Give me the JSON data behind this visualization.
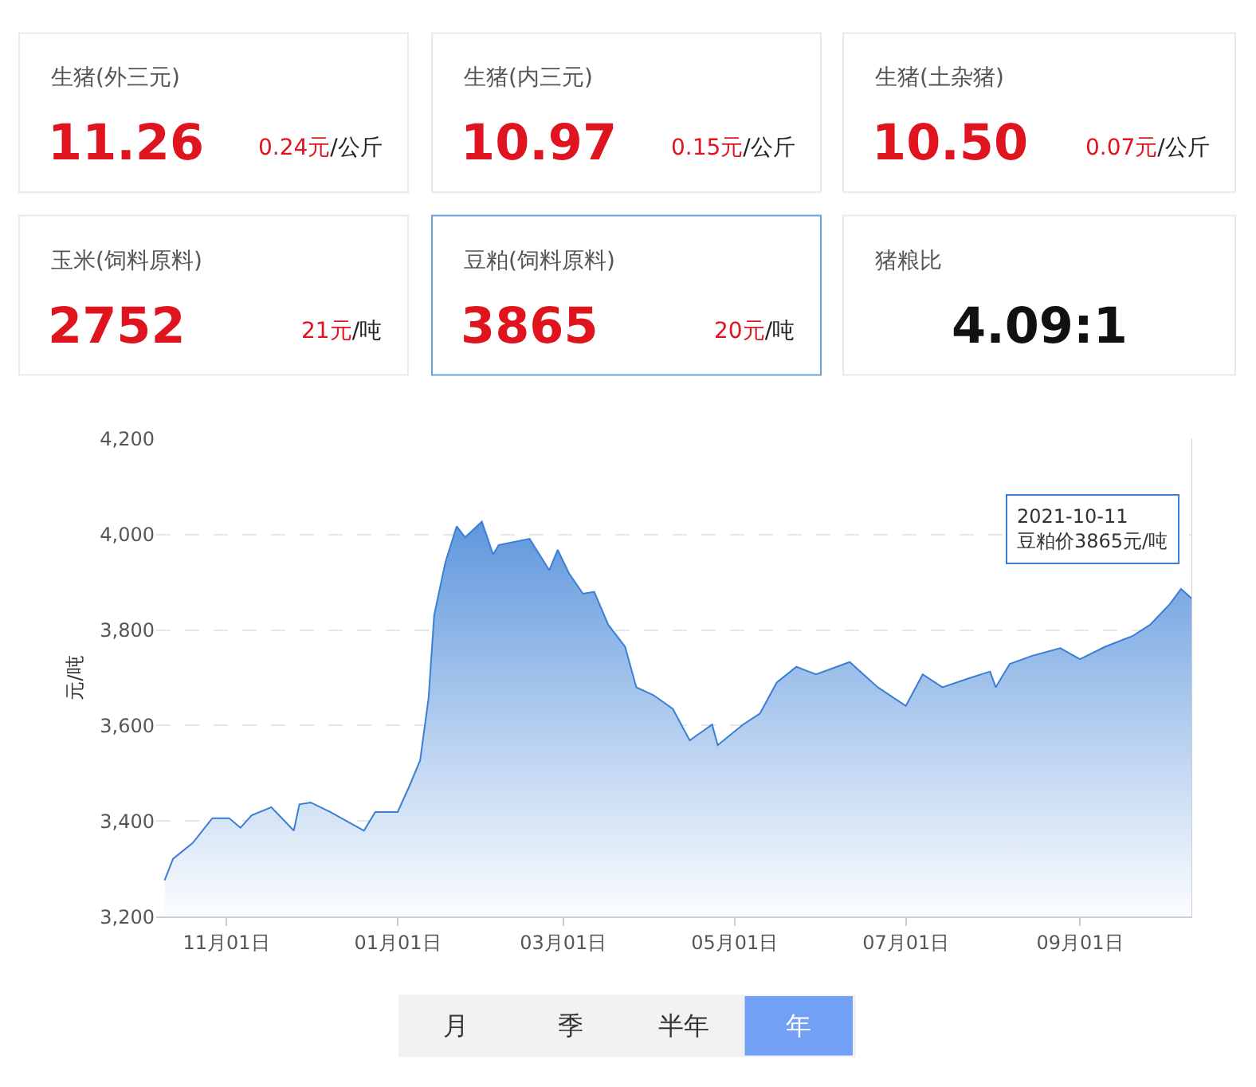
{
  "chart_data": [
    {
      "type": "other",
      "annotations": [
        "生猪(外三元)",
        "11.26",
        "0.24元",
        "/公斤",
        "生猪(内三元)",
        "10.97",
        "0.15元",
        "/公斤",
        "生猪(土杂猪)",
        "10.50",
        "0.07元",
        "/公斤",
        "玉米(饲料原料)",
        "2752",
        "21元",
        "/吨",
        "豆粕(饲料原料)",
        "3865",
        "20元",
        "/吨",
        "猪粮比",
        "4.09:1"
      ]
    },
    {
      "type": "area",
      "ylabel": "元/吨",
      "color": "#3a7fd5",
      "grid": "y",
      "x": [
        "2020-10-10",
        "2020-10-13",
        "2020-10-20",
        "2020-10-27",
        "2020-11-02",
        "2020-11-06",
        "2020-11-10",
        "2020-11-17",
        "2020-11-25",
        "2020-11-27",
        "2020-12-01",
        "2020-12-08",
        "2020-12-20",
        "2020-12-24",
        "2021-01-01",
        "2021-01-05",
        "2021-01-09",
        "2021-01-12",
        "2021-01-14",
        "2021-01-18",
        "2021-01-22",
        "2021-01-25",
        "2021-01-31",
        "2021-02-04",
        "2021-02-06",
        "2021-02-17",
        "2021-02-24",
        "2021-02-27",
        "2021-03-03",
        "2021-03-08",
        "2021-03-12",
        "2021-03-17",
        "2021-03-23",
        "2021-03-27",
        "2021-04-02",
        "2021-04-09",
        "2021-04-15",
        "2021-04-23",
        "2021-04-25",
        "2021-05-04",
        "2021-05-10",
        "2021-05-16",
        "2021-05-23",
        "2021-05-30",
        "2021-06-11",
        "2021-06-21",
        "2021-07-01",
        "2021-07-07",
        "2021-07-14",
        "2021-07-24",
        "2021-07-31",
        "2021-08-02",
        "2021-08-07",
        "2021-08-15",
        "2021-08-25",
        "2021-09-01",
        "2021-09-10",
        "2021-09-20",
        "2021-09-26",
        "2021-10-03",
        "2021-10-07",
        "2021-10-11"
      ],
      "values": [
        3276,
        3321,
        3354,
        3406,
        3406,
        3386,
        3412,
        3429,
        3380,
        3435,
        3439,
        3419,
        3380,
        3419,
        3419,
        3471,
        3527,
        3657,
        3831,
        3942,
        4017,
        3994,
        4027,
        3958,
        3978,
        3991,
        3925,
        3968,
        3919,
        3876,
        3880,
        3811,
        3765,
        3680,
        3664,
        3635,
        3569,
        3602,
        3559,
        3602,
        3625,
        3690,
        3723,
        3707,
        3733,
        3680,
        3641,
        3707,
        3680,
        3700,
        3713,
        3680,
        3729,
        3746,
        3762,
        3739,
        3765,
        3788,
        3811,
        3854,
        3886,
        3865
      ],
      "xlim": [
        "2020-10-07",
        "2021-10-11"
      ],
      "xticks": [
        {
          "value": "2020-11-01",
          "label": "11月01日"
        },
        {
          "value": "2021-01-01",
          "label": "01月01日"
        },
        {
          "value": "2021-03-01",
          "label": "03月01日"
        },
        {
          "value": "2021-05-01",
          "label": "05月01日"
        },
        {
          "value": "2021-07-01",
          "label": "07月01日"
        },
        {
          "value": "2021-09-01",
          "label": "09月01日"
        }
      ],
      "ylim": [
        3200,
        4200
      ],
      "yticks": [
        {
          "value": 3200,
          "label": "3,200"
        },
        {
          "value": 3400,
          "label": "3,400"
        },
        {
          "value": 3600,
          "label": "3,600"
        },
        {
          "value": 3800,
          "label": "3,800"
        },
        {
          "value": 4000,
          "label": "4,000"
        },
        {
          "value": 4200,
          "label": "4,200"
        }
      ],
      "annotations": [
        {
          "text": "2021-10-11\n豆粕价3865元/吨",
          "x": "2021-10-11",
          "y": 3865
        },
        "月",
        "季",
        "半年",
        "年"
      ]
    }
  ]
}
